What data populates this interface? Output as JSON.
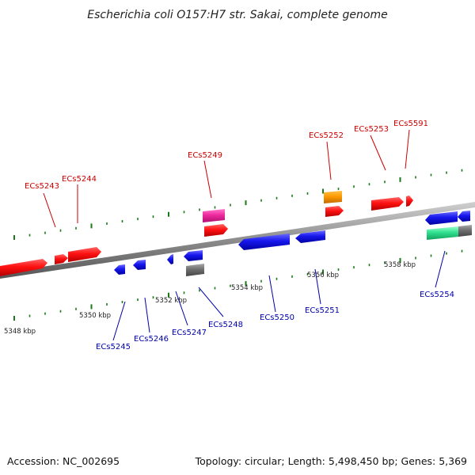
{
  "title": "Escherichia coli O157:H7 str. Sakai, complete genome",
  "footer": {
    "accession": "Accession: NC_002695",
    "summary": "Topology: circular; Length: 5,498,450 bp; Genes: 5,369"
  },
  "colors": {
    "forward_label": "#cc0000",
    "reverse_label": "#0000aa",
    "backbone": "#8c8c8c",
    "tick": "#1a7a1a"
  },
  "kbp_labels": [
    "5348 kbp",
    "5350 kbp",
    "5352 kbp",
    "5354 kbp",
    "5356 kbp",
    "5358 kbp"
  ],
  "genes": [
    {
      "id": "ECs5243",
      "strand": "forward"
    },
    {
      "id": "ECs5244",
      "strand": "forward"
    },
    {
      "id": "ECs5249",
      "strand": "forward"
    },
    {
      "id": "ECs5252",
      "strand": "forward"
    },
    {
      "id": "ECs5253",
      "strand": "forward"
    },
    {
      "id": "ECs5591",
      "strand": "forward"
    },
    {
      "id": "ECs5245",
      "strand": "reverse"
    },
    {
      "id": "ECs5246",
      "strand": "reverse"
    },
    {
      "id": "ECs5247",
      "strand": "reverse"
    },
    {
      "id": "ECs5248",
      "strand": "reverse"
    },
    {
      "id": "ECs5250",
      "strand": "reverse"
    },
    {
      "id": "ECs5251",
      "strand": "reverse"
    },
    {
      "id": "ECs5254",
      "strand": "reverse"
    }
  ]
}
